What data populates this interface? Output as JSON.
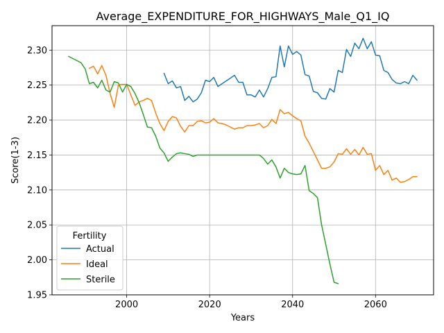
{
  "chart_data": {
    "type": "line",
    "title": "Average_EXPENDITURE_FOR_HIGHWAYS_Male_Q1_IQ",
    "xlabel": "Years",
    "ylabel": "Score(1-3)",
    "xlim": [
      1982,
      2074
    ],
    "ylim": [
      1.95,
      2.335
    ],
    "xticks": [
      2000,
      2020,
      2040,
      2060
    ],
    "yticks": [
      1.95,
      2.0,
      2.05,
      2.1,
      2.15,
      2.2,
      2.25,
      2.3
    ],
    "ytick_labels": [
      "1.95",
      "2.00",
      "2.05",
      "2.10",
      "2.15",
      "2.20",
      "2.25",
      "2.30"
    ],
    "grid": true,
    "legend": {
      "title": "Fertility",
      "placement": "lower-left"
    },
    "series": [
      {
        "name": "Actual",
        "color": "#1f77b4",
        "x": [
          2009,
          2010,
          2011,
          2012,
          2013,
          2014,
          2015,
          2016,
          2017,
          2018,
          2019,
          2020,
          2021,
          2022,
          2023,
          2024,
          2025,
          2026,
          2027,
          2028,
          2029,
          2030,
          2031,
          2032,
          2033,
          2034,
          2035,
          2036,
          2037,
          2038,
          2039,
          2040,
          2041,
          2042,
          2043,
          2044,
          2045,
          2046,
          2047,
          2048,
          2049,
          2050,
          2051,
          2052,
          2053,
          2054,
          2055,
          2056,
          2057,
          2058,
          2059,
          2060,
          2061,
          2062,
          2063,
          2064,
          2065,
          2066,
          2067,
          2068,
          2069,
          2070
        ],
        "y": [
          2.267,
          2.252,
          2.256,
          2.246,
          2.248,
          2.228,
          2.234,
          2.226,
          2.23,
          2.239,
          2.257,
          2.255,
          2.261,
          2.248,
          2.252,
          2.256,
          2.26,
          2.264,
          2.254,
          2.254,
          2.236,
          2.236,
          2.233,
          2.243,
          2.233,
          2.245,
          2.261,
          2.262,
          2.306,
          2.276,
          2.306,
          2.294,
          2.298,
          2.293,
          2.265,
          2.263,
          2.241,
          2.239,
          2.231,
          2.23,
          2.245,
          2.24,
          2.271,
          2.268,
          2.301,
          2.291,
          2.31,
          2.302,
          2.317,
          2.302,
          2.312,
          2.293,
          2.292,
          2.271,
          2.268,
          2.258,
          2.253,
          2.252,
          2.255,
          2.252,
          2.264,
          2.257
        ]
      },
      {
        "name": "Ideal",
        "color": "#ff7f0e",
        "x": [
          1991,
          1992,
          1993,
          1994,
          1995,
          1996,
          1997,
          1998,
          1999,
          2000,
          2001,
          2002,
          2003,
          2004,
          2005,
          2006,
          2007,
          2008,
          2009,
          2010,
          2011,
          2012,
          2013,
          2014,
          2015,
          2016,
          2017,
          2018,
          2019,
          2020,
          2021,
          2022,
          2023,
          2024,
          2025,
          2026,
          2027,
          2028,
          2029,
          2030,
          2031,
          2032,
          2033,
          2034,
          2035,
          2036,
          2037,
          2038,
          2039,
          2040,
          2041,
          2042,
          2043,
          2044,
          2045,
          2046,
          2047,
          2048,
          2049,
          2050,
          2051,
          2052,
          2053,
          2054,
          2055,
          2056,
          2057,
          2058,
          2059,
          2060,
          2061,
          2062,
          2063,
          2064,
          2065,
          2066,
          2067,
          2068,
          2069,
          2070
        ],
        "y": [
          2.274,
          2.277,
          2.266,
          2.278,
          2.264,
          2.238,
          2.218,
          2.25,
          2.251,
          2.251,
          2.236,
          2.221,
          2.226,
          2.228,
          2.231,
          2.228,
          2.21,
          2.195,
          2.185,
          2.198,
          2.205,
          2.203,
          2.191,
          2.183,
          2.192,
          2.192,
          2.198,
          2.199,
          2.196,
          2.197,
          2.202,
          2.196,
          2.195,
          2.193,
          2.19,
          2.187,
          2.189,
          2.189,
          2.192,
          2.192,
          2.193,
          2.195,
          2.189,
          2.192,
          2.201,
          2.195,
          2.215,
          2.209,
          2.211,
          2.206,
          2.202,
          2.199,
          2.177,
          2.167,
          2.155,
          2.143,
          2.131,
          2.131,
          2.133,
          2.14,
          2.152,
          2.151,
          2.159,
          2.151,
          2.158,
          2.15,
          2.161,
          2.151,
          2.152,
          2.128,
          2.135,
          2.122,
          2.128,
          2.114,
          2.117,
          2.111,
          2.112,
          2.115,
          2.119,
          2.119
        ]
      },
      {
        "name": "Sterile",
        "color": "#2ca02c",
        "x": [
          1986,
          1987,
          1988,
          1989,
          1990,
          1991,
          1992,
          1993,
          1994,
          1995,
          1996,
          1997,
          1998,
          1999,
          2000,
          2001,
          2002,
          2003,
          2004,
          2005,
          2006,
          2007,
          2008,
          2009,
          2010,
          2011,
          2012,
          2013,
          2014,
          2015,
          2016,
          2017,
          2018,
          2019,
          2020,
          2021,
          2022,
          2023,
          2024,
          2025,
          2026,
          2027,
          2028,
          2029,
          2030,
          2031,
          2032,
          2033,
          2034,
          2035,
          2036,
          2037,
          2038,
          2039,
          2040,
          2041,
          2042,
          2043,
          2044,
          2045,
          2046,
          2047,
          2048,
          2049,
          2050,
          2051
        ],
        "y": [
          2.291,
          2.288,
          2.285,
          2.282,
          2.273,
          2.252,
          2.254,
          2.246,
          2.257,
          2.243,
          2.24,
          2.255,
          2.253,
          2.24,
          2.251,
          2.248,
          2.238,
          2.225,
          2.208,
          2.19,
          2.189,
          2.177,
          2.16,
          2.153,
          2.141,
          2.147,
          2.152,
          2.153,
          2.152,
          2.151,
          2.148,
          2.15,
          2.15,
          2.15,
          2.15,
          2.15,
          2.15,
          2.15,
          2.15,
          2.15,
          2.15,
          2.15,
          2.15,
          2.15,
          2.15,
          2.15,
          2.15,
          2.145,
          2.137,
          2.143,
          2.133,
          2.117,
          2.131,
          2.125,
          2.123,
          2.122,
          2.123,
          2.135,
          2.099,
          2.095,
          2.089,
          2.05,
          2.022,
          1.994,
          1.968,
          1.966
        ]
      }
    ]
  }
}
